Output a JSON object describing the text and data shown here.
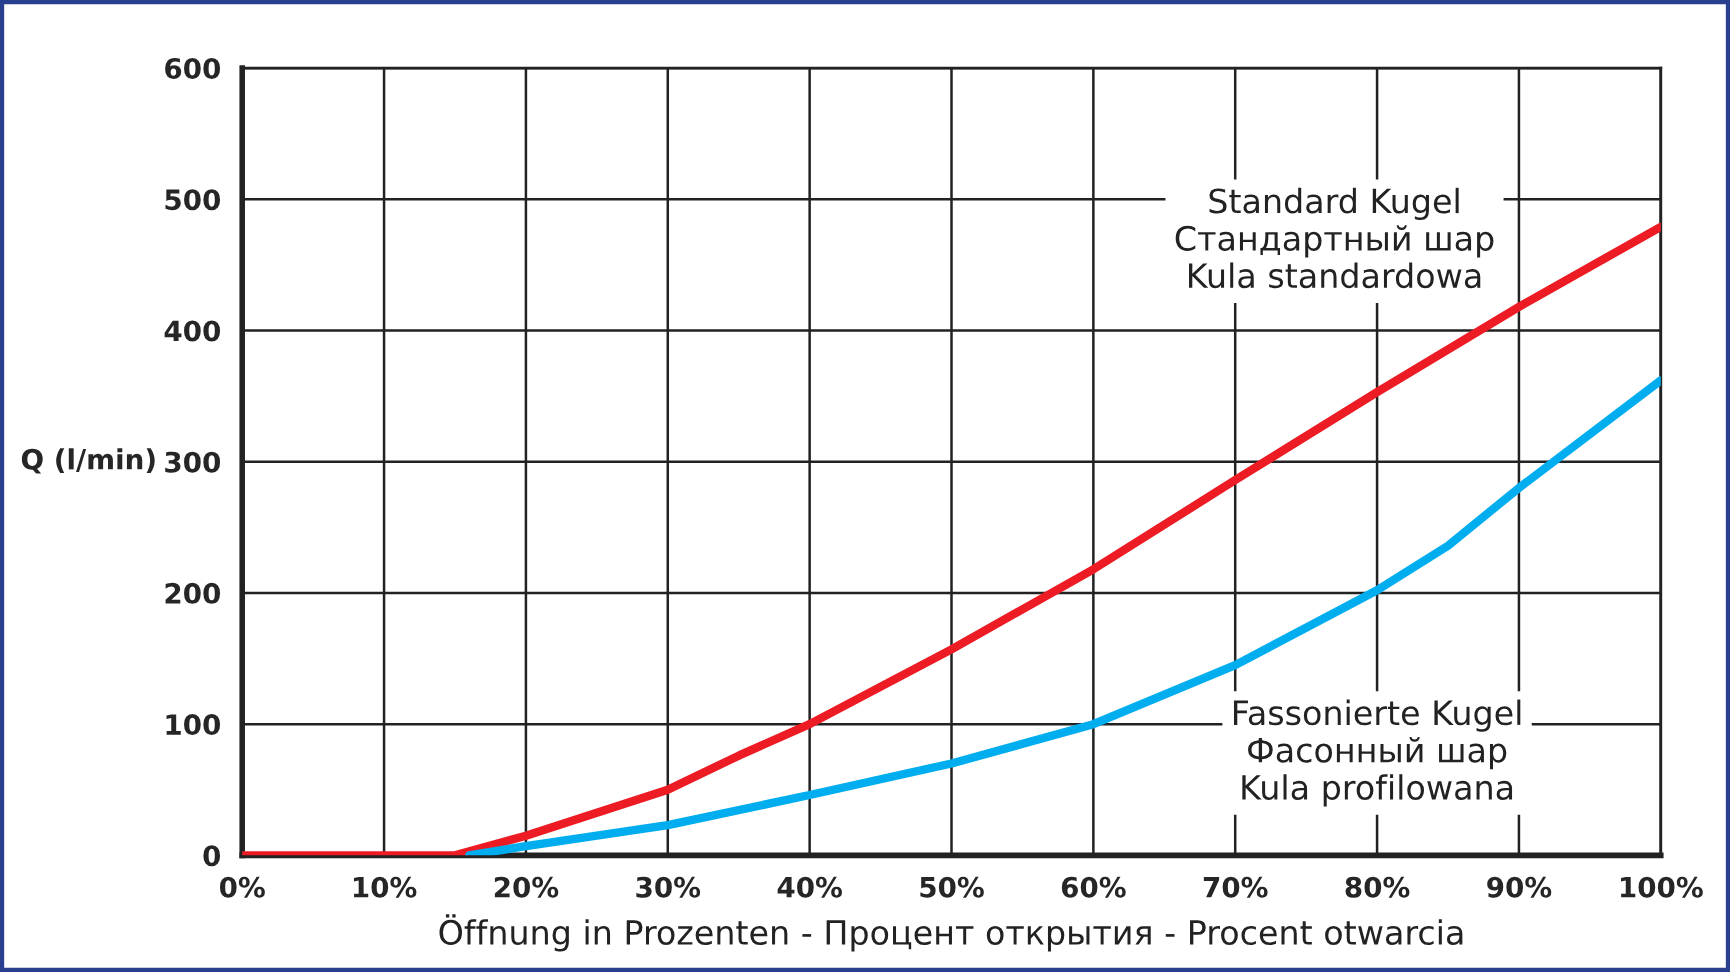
{
  "chart_data": {
    "type": "line",
    "xlabel": "Öffnung in Prozenten - Процент открытия - Procent otwarcia",
    "ylabel": "Q (l/min)",
    "xlim": [
      0,
      100
    ],
    "ylim": [
      0,
      600
    ],
    "xticks": [
      {
        "value": 0,
        "label": "0%"
      },
      {
        "value": 10,
        "label": "10%"
      },
      {
        "value": 20,
        "label": "20%"
      },
      {
        "value": 30,
        "label": "30%"
      },
      {
        "value": 40,
        "label": "40%"
      },
      {
        "value": 50,
        "label": "50%"
      },
      {
        "value": 60,
        "label": "60%"
      },
      {
        "value": 70,
        "label": "70%"
      },
      {
        "value": 80,
        "label": "80%"
      },
      {
        "value": 90,
        "label": "90%"
      },
      {
        "value": 100,
        "label": "100%"
      }
    ],
    "yticks": [
      0,
      100,
      200,
      300,
      400,
      500,
      600
    ],
    "grid": true,
    "legend": false,
    "series": [
      {
        "name": "Standard Kugel\nСтандартный шар\nKula standardowa",
        "color": "#ed1c24",
        "x": [
          0,
          15,
          20,
          30,
          35,
          40,
          50,
          60,
          70,
          80,
          90,
          100
        ],
        "values": [
          0,
          0,
          15,
          50,
          76,
          100,
          157,
          218,
          286,
          353,
          418,
          479
        ]
      },
      {
        "name": "Fassonierte Kugel\nФасонный шар\nKula profilowana",
        "color": "#00aeef",
        "x": [
          16,
          20,
          30,
          40,
          50,
          60,
          70,
          80,
          85,
          90,
          100
        ],
        "values": [
          0,
          7,
          23,
          46,
          70,
          100,
          145,
          202,
          236,
          280,
          362
        ]
      }
    ]
  }
}
